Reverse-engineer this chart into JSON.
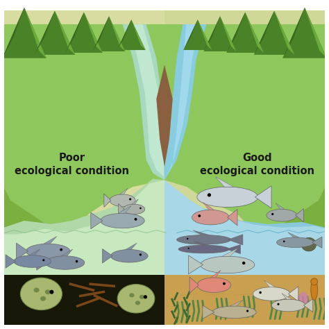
{
  "left_label_line1": "Poor",
  "left_label_line2": "ecological condition",
  "right_label_line1": "Good",
  "right_label_line2": "ecological condition",
  "bg_color": "#ffffff",
  "land_green_left": "#8dc85a",
  "land_green_right": "#7ab848",
  "land_shadow_left": "#b8c890",
  "land_shadow_right": "#a0c070",
  "mountain_dark": "#4a7a28",
  "mountain_mid": "#6aaa38",
  "mountain_light": "#8aca58",
  "water_poor": "#b8e0c0",
  "water_good": "#80c8d8",
  "river_green": "#a8d8c0",
  "river_blue": "#88cce0",
  "water_deep_poor": "#a0cc88",
  "bottom_black": "#101008",
  "bottom_sand": "#c8a860",
  "label_color": "#1a1a1a",
  "label_fontsize": 10.5
}
